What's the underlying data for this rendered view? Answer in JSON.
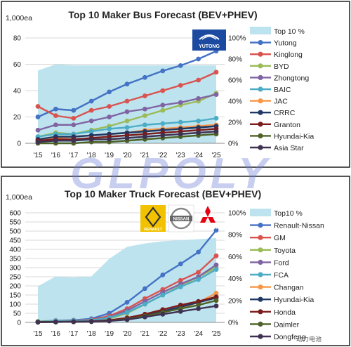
{
  "watermark": "GLPOLY",
  "colors": {
    "frame": "#1f1f1f",
    "area": "#bde3ef",
    "grid": "#d9d9d9"
  },
  "logos": [
    {
      "name": "yutong-logo",
      "text": "YUTONG"
    },
    {
      "name": "renault-logo",
      "text": "RENAULT"
    },
    {
      "name": "nissan-logo",
      "text": "NISSAN"
    },
    {
      "name": "mitsubishi-logo",
      "text": "MITSUBISHI MOTORS"
    }
  ],
  "corner_mark": "动力电池",
  "chart_data": [
    {
      "type": "line",
      "title": "Top 10 Maker Bus Forecast (BEV+PHEV)",
      "unit_label": "1,000ea",
      "categories": [
        "'15",
        "'16",
        "'17",
        "'18",
        "'19",
        "'20",
        "'21",
        "'22",
        "'23",
        "'24",
        "'25"
      ],
      "ylim": [
        0,
        80
      ],
      "yticks": [
        0,
        20,
        40,
        60,
        80
      ],
      "y2lim": [
        0,
        100
      ],
      "y2ticks": [
        "0%",
        "20%",
        "40%",
        "60%",
        "80%",
        "100%"
      ],
      "grid": true,
      "legend_position": "right",
      "area": {
        "name": "Top 10 %",
        "color": "#bde3ef",
        "values": [
          69,
          75,
          74,
          74,
          74,
          74,
          74,
          74,
          74,
          74,
          74
        ]
      },
      "series": [
        {
          "name": "Yutong",
          "color": "#4472c4",
          "values": [
            20,
            26,
            25,
            32,
            39,
            45,
            50,
            55,
            59,
            64,
            70
          ]
        },
        {
          "name": "Kinglong",
          "color": "#d9534f",
          "values": [
            28,
            21,
            19,
            25,
            28,
            32,
            36,
            40,
            44,
            48,
            54
          ]
        },
        {
          "name": "BYD",
          "color": "#9bbb59",
          "values": [
            5,
            8,
            7,
            10,
            13,
            17,
            21,
            25,
            29,
            32,
            38
          ]
        },
        {
          "name": "Zhongtong",
          "color": "#8064a2",
          "values": [
            10,
            14,
            14,
            17,
            20,
            24,
            26,
            29,
            31,
            34,
            37
          ]
        },
        {
          "name": "BAIC",
          "color": "#4bacc6",
          "values": [
            5,
            7,
            7,
            9,
            11,
            12,
            14,
            15,
            16,
            17,
            19
          ]
        },
        {
          "name": "JAC",
          "color": "#f79646",
          "values": [
            2,
            4,
            5,
            6,
            7,
            8,
            10,
            11,
            12,
            13,
            14
          ]
        },
        {
          "name": "CRRC",
          "color": "#1f3864",
          "values": [
            3,
            5,
            5,
            6,
            7,
            8,
            9,
            10,
            11,
            12,
            13
          ]
        },
        {
          "name": "Granton",
          "color": "#7b1c1c",
          "values": [
            2,
            3,
            3,
            4,
            5,
            6,
            7,
            8,
            9,
            10,
            11
          ]
        },
        {
          "name": "Hyundai-Kia",
          "color": "#4f6228",
          "values": [
            0,
            0,
            0,
            1,
            1,
            2,
            3,
            4,
            5,
            6,
            7
          ]
        },
        {
          "name": "Asia Star",
          "color": "#3f3151",
          "values": [
            1,
            2,
            2,
            3,
            3,
            4,
            5,
            6,
            7,
            8,
            9
          ]
        }
      ]
    },
    {
      "type": "line",
      "title": "Top 10 Maker Truck Forecast (BEV+PHEV)",
      "unit_label": "1,000ea",
      "categories": [
        "'15",
        "'16",
        "'17",
        "'18",
        "'19",
        "'20",
        "'21",
        "'22",
        "'23",
        "'24",
        "'25"
      ],
      "ylim": [
        0,
        600
      ],
      "yticks": [
        0,
        50,
        100,
        150,
        200,
        250,
        300,
        350,
        400,
        450,
        500,
        550,
        600
      ],
      "y2lim": [
        0,
        100
      ],
      "y2ticks": [
        "0%",
        "20%",
        "40%",
        "60%",
        "80%",
        "100%"
      ],
      "grid": true,
      "legend_position": "right",
      "area": {
        "name": "Top10 %",
        "color": "#bde3ef",
        "values": [
          33,
          42,
          41,
          42,
          58,
          69,
          72,
          74,
          75,
          76,
          77
        ]
      },
      "series": [
        {
          "name": "Renault-Nissan",
          "color": "#4472c4",
          "values": [
            5,
            10,
            12,
            20,
            50,
            110,
            185,
            260,
            320,
            385,
            505
          ]
        },
        {
          "name": "GM",
          "color": "#d9534f",
          "values": [
            3,
            8,
            10,
            15,
            35,
            75,
            130,
            180,
            230,
            275,
            365
          ]
        },
        {
          "name": "Toyota",
          "color": "#9bbb59",
          "values": [
            5,
            8,
            8,
            12,
            20,
            50,
            100,
            150,
            200,
            250,
            300
          ]
        },
        {
          "name": "Ford",
          "color": "#8064a2",
          "values": [
            2,
            6,
            8,
            12,
            28,
            65,
            115,
            165,
            210,
            250,
            315
          ]
        },
        {
          "name": "FCA",
          "color": "#4bacc6",
          "values": [
            3,
            7,
            9,
            12,
            25,
            55,
            100,
            150,
            195,
            235,
            290
          ]
        },
        {
          "name": "Changan",
          "color": "#f79646",
          "values": [
            1,
            3,
            4,
            6,
            10,
            20,
            35,
            55,
            80,
            110,
            160
          ]
        },
        {
          "name": "Hyundai-Kia",
          "color": "#1f3864",
          "values": [
            1,
            2,
            3,
            5,
            10,
            22,
            40,
            60,
            85,
            110,
            135
          ]
        },
        {
          "name": "Honda",
          "color": "#7b1c1c",
          "values": [
            2,
            3,
            4,
            6,
            12,
            25,
            45,
            70,
            95,
            115,
            140
          ]
        },
        {
          "name": "Daimler",
          "color": "#4f6228",
          "values": [
            1,
            2,
            3,
            4,
            8,
            18,
            35,
            55,
            75,
            95,
            120
          ]
        },
        {
          "name": "Dongfeng",
          "color": "#3f3151",
          "values": [
            2,
            3,
            4,
            5,
            8,
            15,
            30,
            45,
            60,
            75,
            90
          ]
        }
      ]
    }
  ]
}
